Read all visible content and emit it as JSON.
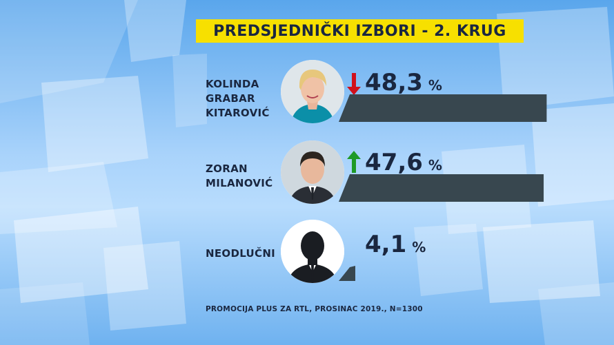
{
  "chart_data": {
    "type": "bar",
    "orientation": "horizontal",
    "title": "PREDSJEDNIČKI IZBORI - 2. KRUG",
    "unit": "%",
    "categories": [
      "KOLINDA\nGRABAR\nKITAROVIĆ",
      "ZORAN\nMILANOVIĆ",
      "NEODLUČNI"
    ],
    "values": [
      48.3,
      47.6,
      4.1
    ],
    "value_labels": [
      "48,3",
      "47,6",
      "4,1"
    ],
    "trends": [
      "down",
      "up",
      "none"
    ],
    "trend_colors": {
      "down": "#d0101b",
      "up": "#1e9a27"
    },
    "bar_color": "#38474f",
    "xlim": [
      0,
      50
    ],
    "source": "PROMOCIJA PLUS ZA RTL, PROSINAC 2019., N=1300"
  },
  "avatars": [
    "woman-portrait-icon",
    "man-portrait-icon",
    "anonymous-silhouette-icon"
  ]
}
